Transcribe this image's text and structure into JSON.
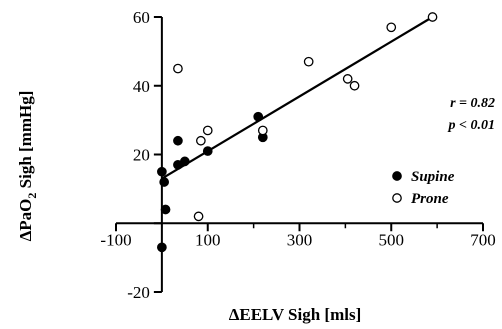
{
  "chart_data": {
    "type": "scatter",
    "title": "",
    "ylabel": {
      "prefix": "ΔPaO",
      "sub": "2",
      "suffix": " Sigh [mmHg]"
    },
    "xlabel": "ΔEELV Sigh [mls]",
    "xlim": [
      -100,
      700
    ],
    "ylim": [
      -20,
      60
    ],
    "x_ticks": [
      -100,
      100,
      300,
      500,
      700
    ],
    "y_ticks": [
      -20,
      20,
      40,
      60
    ],
    "y_axis_at_x": 0,
    "x_axis_at_y": 0,
    "grid": false,
    "legend_position": "right",
    "annotations": {
      "r": "r = 0.82",
      "p": "p < 0.01"
    },
    "series": [
      {
        "name": "Supine",
        "marker": "filled-circle",
        "color": "#000000",
        "points": [
          {
            "x": 0,
            "y": 15
          },
          {
            "x": 5,
            "y": 12
          },
          {
            "x": 8,
            "y": 4
          },
          {
            "x": 0,
            "y": -7
          },
          {
            "x": 35,
            "y": 24
          },
          {
            "x": 35,
            "y": 17
          },
          {
            "x": 50,
            "y": 18
          },
          {
            "x": 100,
            "y": 21
          },
          {
            "x": 210,
            "y": 31
          },
          {
            "x": 220,
            "y": 25
          }
        ]
      },
      {
        "name": "Prone",
        "marker": "open-circle",
        "color": "#000000",
        "points": [
          {
            "x": 35,
            "y": 45
          },
          {
            "x": 80,
            "y": 2
          },
          {
            "x": 85,
            "y": 24
          },
          {
            "x": 100,
            "y": 27
          },
          {
            "x": 220,
            "y": 27
          },
          {
            "x": 320,
            "y": 47
          },
          {
            "x": 405,
            "y": 42
          },
          {
            "x": 420,
            "y": 40
          },
          {
            "x": 500,
            "y": 57
          },
          {
            "x": 590,
            "y": 60
          }
        ]
      }
    ],
    "regression_line": {
      "x": [
        0,
        590
      ],
      "y": [
        13,
        60
      ]
    }
  }
}
